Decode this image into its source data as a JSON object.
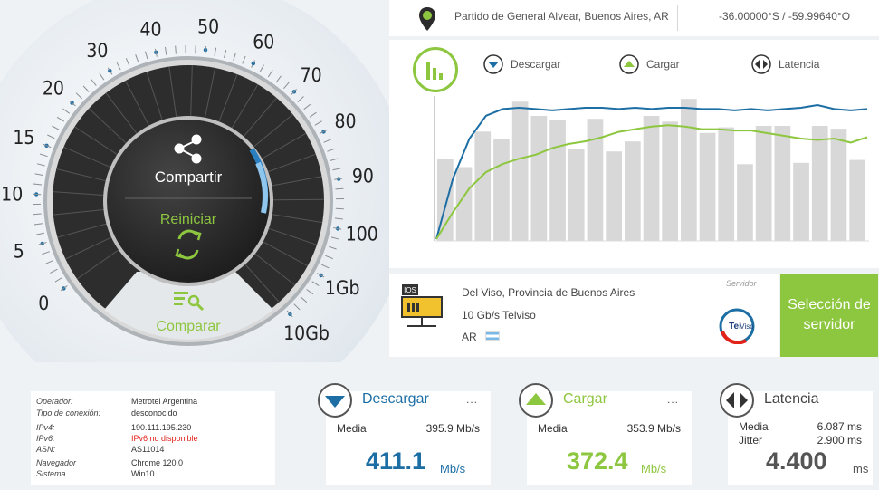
{
  "location": {
    "name": "Partido de General Alvear, Buenos Aires, AR",
    "coords": "-36.00000°S / -59.99640°O"
  },
  "legend": {
    "download": "Descargar",
    "upload": "Cargar",
    "latency": "Latencia"
  },
  "colors": {
    "green": "#8dc63f",
    "blue": "#1c6ea4",
    "dark": "#3a3a3a",
    "accent": "#e2231a"
  },
  "gauge": {
    "labels": [
      "0",
      "5",
      "10",
      "15",
      "20",
      "30",
      "40",
      "50",
      "60",
      "70",
      "80",
      "90",
      "100",
      "1Gb",
      "10Gb"
    ],
    "share": "Compartir",
    "restart": "Reiniciar",
    "compare": "Comparar",
    "icons": {
      "share": "share-icon",
      "restart": "refresh-icon",
      "compare": "compare-icon"
    }
  },
  "chart_data": {
    "type": "line",
    "bars": [
      0.58,
      0.52,
      0.77,
      0.72,
      0.98,
      0.88,
      0.85,
      0.65,
      0.86,
      0.63,
      0.7,
      0.88,
      0.84,
      1.0,
      0.76,
      0.8,
      0.54,
      0.81,
      0.81,
      0.55,
      0.81,
      0.79,
      0.57
    ],
    "series": [
      {
        "color": "#1c6ea4",
        "values": [
          0.0,
          0.45,
          0.75,
          0.92,
          0.97,
          0.98,
          0.97,
          0.96,
          0.97,
          0.98,
          0.98,
          0.97,
          0.98,
          0.97,
          0.98,
          0.98,
          0.97,
          0.97,
          0.96,
          0.97,
          0.96,
          0.97,
          0.98,
          1.0,
          0.97,
          0.96,
          0.97
        ]
      },
      {
        "color": "#8dc63f",
        "values": [
          0.0,
          0.2,
          0.38,
          0.5,
          0.56,
          0.6,
          0.63,
          0.68,
          0.71,
          0.73,
          0.76,
          0.8,
          0.82,
          0.84,
          0.85,
          0.84,
          0.82,
          0.82,
          0.81,
          0.81,
          0.79,
          0.77,
          0.75,
          0.74,
          0.75,
          0.72,
          0.76
        ]
      }
    ]
  },
  "server": {
    "location": "Del Viso, Provincia de Buenos Aires",
    "capacity": "10 Gb/s Telviso",
    "country": "AR",
    "tag": "Servidor",
    "select": "Selección de servidor",
    "logo": "Tel",
    "logo_b": "Viso"
  },
  "info": [
    {
      "k": "Operador:",
      "v": "Metrotel Argentina"
    },
    {
      "k": "Tipo de conexión:",
      "v": "desconocido"
    },
    {
      "k": "IPv4:",
      "v": "190.111.195.230"
    },
    {
      "k": "IPv6:",
      "v": "IPv6 no disponible"
    },
    {
      "k": "ASN:",
      "v": "AS11014"
    },
    {
      "k": "Navegador",
      "v": "Chrome 120.0"
    },
    {
      "k": "Sistema",
      "v": "Win10"
    }
  ],
  "download": {
    "title": "Descargar",
    "dots": "...",
    "media_label": "Media",
    "media": "395.9 Mb/s",
    "value": "411.1",
    "unit": "Mb/s"
  },
  "upload": {
    "title": "Cargar",
    "dots": "...",
    "media_label": "Media",
    "media": "353.9 Mb/s",
    "value": "372.4",
    "unit": "Mb/s"
  },
  "latency": {
    "title": "Latencia",
    "dots": "...",
    "media_label": "Media",
    "media": "6.087 ms",
    "jitter_label": "Jitter",
    "jitter": "2.900 ms",
    "value": "4.400",
    "unit": "ms"
  }
}
